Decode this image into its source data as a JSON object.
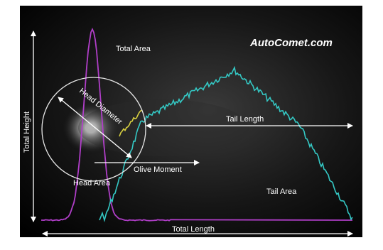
{
  "brand": "AutoComet.com",
  "labels": {
    "total_area": "Total Area",
    "head_diameter": "Head Diameter",
    "tail_length": "Tail Length",
    "olive_moment": "Olive Moment",
    "head_area": "Head Area",
    "tail_area": "Tail Area",
    "total_height": "Total Height",
    "total_length": "Total Length"
  },
  "colors": {
    "background": "#000000",
    "head_profile": "#b03ec8",
    "tail_profile": "#34c8c4",
    "overlap": "#d8d040",
    "annotation": "#ffffff"
  }
}
